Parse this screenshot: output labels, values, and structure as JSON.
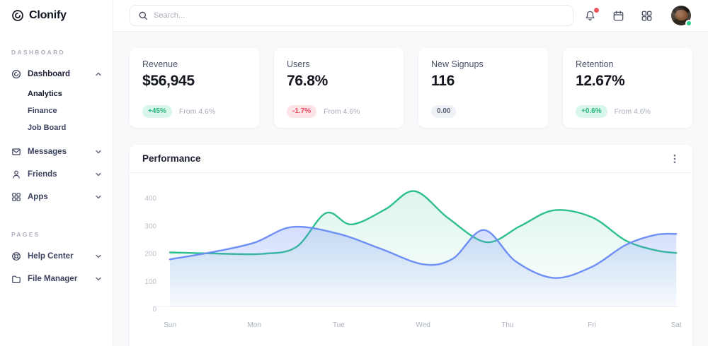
{
  "brand": {
    "name": "Clonify"
  },
  "topbar": {
    "search_placeholder": "Search...",
    "has_notification_dot": true,
    "user_status": "online"
  },
  "sidebar": {
    "sections": [
      {
        "label": "DASHBOARD",
        "items": [
          {
            "label": "Dashboard",
            "icon": "clonify-mark-icon",
            "expanded": true,
            "children": [
              {
                "label": "Analytics",
                "active": true
              },
              {
                "label": "Finance",
                "active": false
              },
              {
                "label": "Job Board",
                "active": false
              }
            ]
          },
          {
            "label": "Messages",
            "icon": "envelope-icon",
            "expanded": false
          },
          {
            "label": "Friends",
            "icon": "person-icon",
            "expanded": false
          },
          {
            "label": "Apps",
            "icon": "grid-icon",
            "expanded": false
          }
        ]
      },
      {
        "label": "PAGES",
        "items": [
          {
            "label": "Help Center",
            "icon": "lifebuoy-icon",
            "expanded": false
          },
          {
            "label": "File Manager",
            "icon": "folder-icon",
            "expanded": false
          }
        ]
      }
    ]
  },
  "stat_cards": [
    {
      "title": "Revenue",
      "value": "$56,945",
      "badge": "+45%",
      "badge_type": "positive",
      "note": "From 4.6%"
    },
    {
      "title": "Users",
      "value": "76.8%",
      "badge": "-1.7%",
      "badge_type": "negative",
      "note": "From 4.6%"
    },
    {
      "title": "New Signups",
      "value": "116",
      "badge": "0.00",
      "badge_type": "neutral",
      "note": ""
    },
    {
      "title": "Retention",
      "value": "12.67%",
      "badge": "+0.6%",
      "badge_type": "positive",
      "note": "From 4.6%"
    }
  ],
  "panel": {
    "title": "Performance"
  },
  "colors": {
    "accent_green": "#2dbf8d",
    "accent_blue": "#6e8ff5",
    "badge_positive_bg": "#d9f6ea",
    "badge_positive_text": "#27b883",
    "badge_negative_bg": "#fce3e6",
    "badge_negative_text": "#ee4a5e",
    "badge_neutral_bg": "#eef1f5",
    "badge_neutral_text": "#555e70",
    "notification_dot": "#f0545c",
    "status_online": "#2ecc8e",
    "page_background": "#f7f9fb"
  },
  "chart_data": {
    "type": "area",
    "title": "Performance",
    "x_axis": {
      "labels": [
        "Sun",
        "Mon",
        "Tue",
        "Wed",
        "Thu",
        "Fri",
        "Sat"
      ],
      "unit": "day",
      "range": [
        0,
        6
      ]
    },
    "y_axis": {
      "ticks": [
        0,
        100,
        200,
        300,
        400
      ],
      "range": [
        0,
        440
      ]
    },
    "grid": false,
    "legend": "none",
    "series": [
      {
        "name": "series-green",
        "color": "#2dbf8d",
        "x": [
          0,
          0.55,
          1.1,
          1.5,
          1.85,
          2.15,
          2.55,
          2.9,
          3.3,
          3.75,
          4.15,
          4.55,
          5.0,
          5.4,
          5.75,
          6
        ],
        "values": [
          195,
          191,
          190,
          215,
          337,
          296,
          350,
          416,
          318,
          232,
          290,
          347,
          322,
          238,
          203,
          193
        ]
      },
      {
        "name": "series-blue",
        "color": "#6e8ff5",
        "x": [
          0,
          0.5,
          1.0,
          1.45,
          2.0,
          2.5,
          3.0,
          3.35,
          3.72,
          4.1,
          4.55,
          5.0,
          5.4,
          5.75,
          6
        ],
        "values": [
          170,
          196,
          230,
          287,
          262,
          208,
          152,
          172,
          276,
          162,
          103,
          143,
          222,
          258,
          262
        ]
      }
    ]
  }
}
